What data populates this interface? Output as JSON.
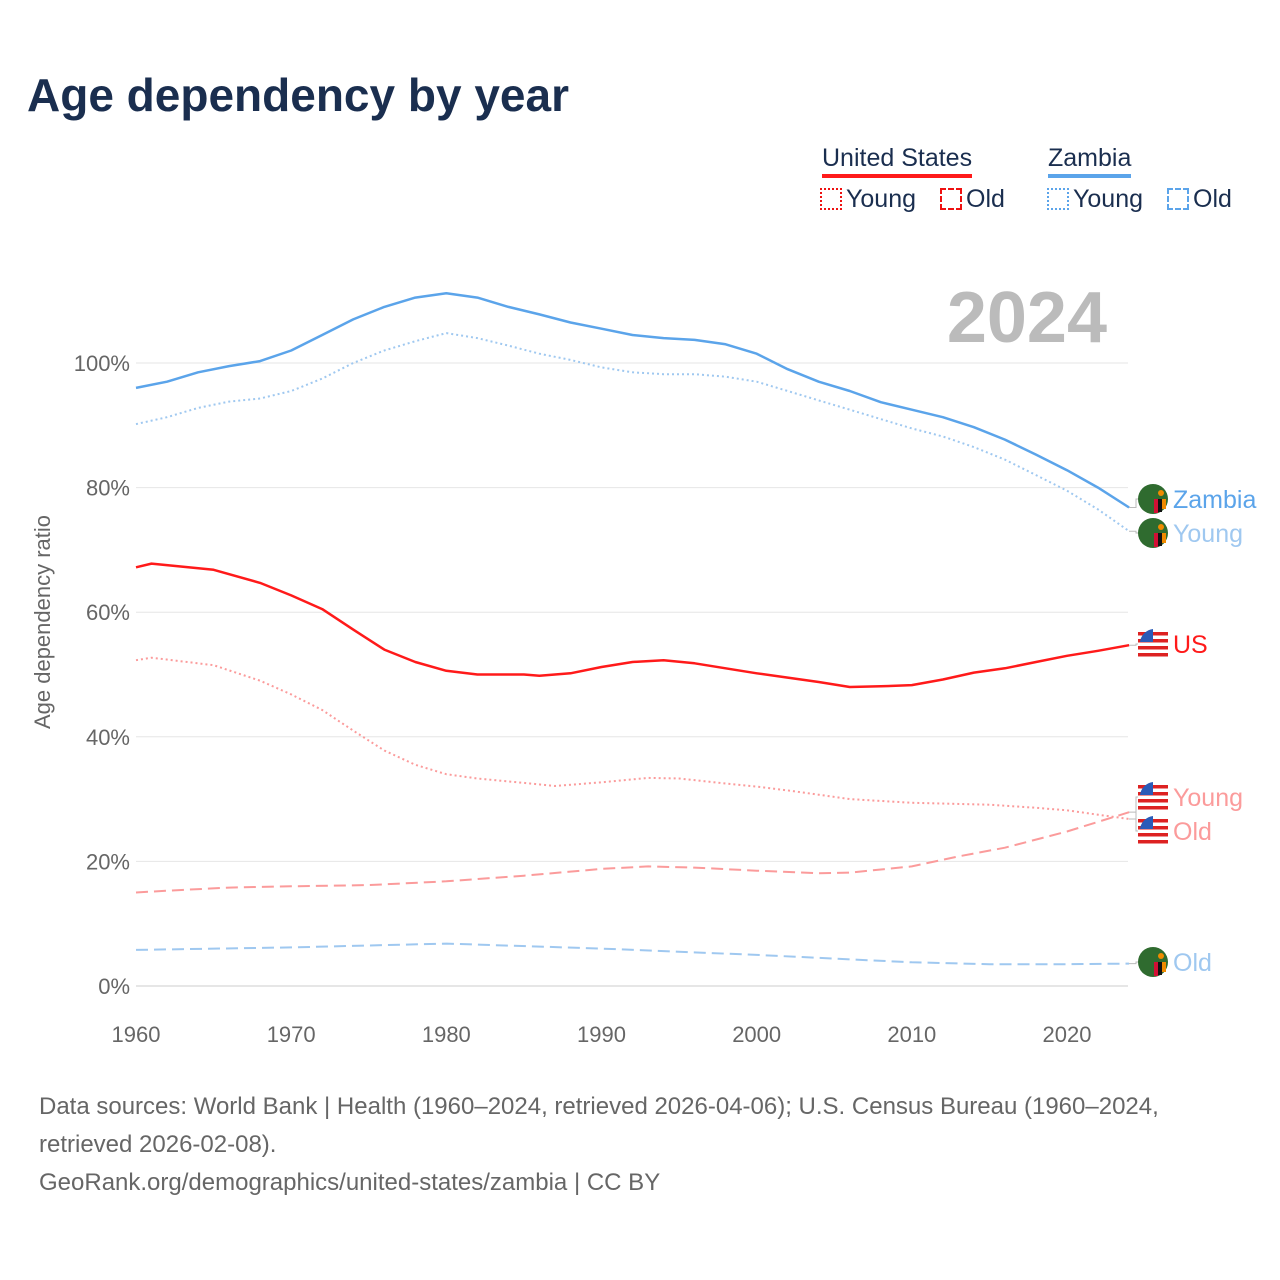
{
  "title": "Age dependency by year",
  "year_badge": "2024",
  "legend": {
    "groups": [
      {
        "name": "United States",
        "color": "#ff1a1a",
        "items": [
          "Young",
          "Old"
        ]
      },
      {
        "name": "Zambia",
        "color": "#5ba4ea",
        "items": [
          "Young",
          "Old"
        ]
      }
    ]
  },
  "footer": {
    "sources": "Data sources: World Bank | Health (1960–2024, retrieved 2026-04-06); U.S. Census Bureau (1960–2024, retrieved 2026-02-08).",
    "link": "GeoRank.org/demographics/united-states/zambia | CC BY"
  },
  "chart_data": {
    "type": "line",
    "title": "Age dependency by year",
    "xlabel": "",
    "ylabel": "Age dependency ratio",
    "xlim": [
      1960,
      2024
    ],
    "ylim": [
      0,
      115
    ],
    "x_ticks": [
      "1960",
      "1970",
      "1980",
      "1990",
      "2000",
      "2010",
      "2020"
    ],
    "y_ticks": [
      "0%",
      "20%",
      "40%",
      "60%",
      "80%",
      "100%"
    ],
    "series": [
      {
        "name": "Zambia",
        "label": "Zambia",
        "style": "solid",
        "color": "#5ba4ea",
        "flag": "zambia",
        "x": [
          1960,
          1962,
          1964,
          1966,
          1968,
          1970,
          1972,
          1974,
          1976,
          1978,
          1980,
          1982,
          1984,
          1986,
          1988,
          1990,
          1992,
          1994,
          1996,
          1998,
          2000,
          2002,
          2004,
          2006,
          2008,
          2010,
          2012,
          2014,
          2016,
          2018,
          2020,
          2022,
          2024
        ],
        "y": [
          96,
          97,
          98.5,
          99.5,
          100.3,
          102,
          104.5,
          107,
          109,
          110.5,
          111.2,
          110.5,
          109,
          107.8,
          106.5,
          105.5,
          104.5,
          104,
          103.7,
          103,
          101.5,
          99,
          97,
          95.5,
          93.7,
          92.5,
          91.3,
          89.7,
          87.7,
          85.3,
          82.8,
          80,
          76.8
        ]
      },
      {
        "name": "Zambia Young",
        "label": "Young",
        "style": "dotted",
        "color": "#9fc8f0",
        "flag": "zambia",
        "x": [
          1960,
          1962,
          1964,
          1966,
          1968,
          1970,
          1972,
          1974,
          1976,
          1978,
          1980,
          1982,
          1984,
          1986,
          1988,
          1990,
          1992,
          1994,
          1996,
          1998,
          2000,
          2002,
          2004,
          2006,
          2008,
          2010,
          2012,
          2014,
          2016,
          2018,
          2020,
          2022,
          2024
        ],
        "y": [
          90.2,
          91.3,
          92.8,
          93.8,
          94.3,
          95.5,
          97.5,
          100,
          102,
          103.5,
          104.8,
          104,
          102.8,
          101.5,
          100.5,
          99.3,
          98.5,
          98.2,
          98.2,
          97.8,
          97,
          95.5,
          94,
          92.5,
          91,
          89.5,
          88.2,
          86.5,
          84.5,
          82,
          79.5,
          76.5,
          73
        ]
      },
      {
        "name": "United States",
        "label": "US",
        "style": "solid",
        "color": "#ff1a1a",
        "flag": "us",
        "x": [
          1960,
          1961,
          1965,
          1968,
          1970,
          1972,
          1974,
          1976,
          1978,
          1980,
          1982,
          1985,
          1986,
          1988,
          1990,
          1992,
          1994,
          1996,
          1998,
          2000,
          2002,
          2004,
          2006,
          2008,
          2010,
          2012,
          2014,
          2016,
          2018,
          2020,
          2022,
          2024
        ],
        "y": [
          67.2,
          67.8,
          66.8,
          64.7,
          62.7,
          60.5,
          57.2,
          54,
          52,
          50.6,
          50,
          50,
          49.8,
          50.2,
          51.2,
          52,
          52.3,
          51.8,
          51,
          50.2,
          49.5,
          48.8,
          48,
          48.1,
          48.3,
          49.2,
          50.3,
          51,
          52,
          53,
          53.8,
          54.7
        ]
      },
      {
        "name": "United States Old",
        "label": "Old",
        "style": "dashed",
        "color": "#fb9b9b",
        "flag": "us",
        "x": [
          1960,
          1962,
          1966,
          1970,
          1975,
          1980,
          1985,
          1990,
          1993,
          1996,
          2000,
          2004,
          2006,
          2010,
          2013,
          2016,
          2020,
          2024
        ],
        "y": [
          15,
          15.3,
          15.8,
          16,
          16.2,
          16.8,
          17.7,
          18.8,
          19.2,
          19,
          18.5,
          18.1,
          18.2,
          19.2,
          20.8,
          22.2,
          24.8,
          27.9
        ]
      },
      {
        "name": "United States Young",
        "label": "Young",
        "style": "dotted",
        "color": "#fb9b9b",
        "flag": "us",
        "x": [
          1960,
          1961,
          1965,
          1968,
          1970,
          1972,
          1974,
          1976,
          1978,
          1980,
          1982,
          1985,
          1987,
          1990,
          1993,
          1995,
          1998,
          2000,
          2002,
          2004,
          2006,
          2010,
          2015,
          2018,
          2020,
          2022,
          2024
        ],
        "y": [
          52.3,
          52.7,
          51.5,
          49,
          46.8,
          44.3,
          41,
          37.8,
          35.5,
          34,
          33.3,
          32.6,
          32.1,
          32.7,
          33.4,
          33.3,
          32.5,
          32,
          31.4,
          30.7,
          30,
          29.4,
          29.1,
          28.6,
          28.2,
          27.5,
          26.8
        ]
      },
      {
        "name": "Zambia Old",
        "label": "Old",
        "style": "dashed",
        "color": "#9fc8f0",
        "flag": "zambia",
        "x": [
          1960,
          1970,
          1980,
          1990,
          2000,
          2010,
          2015,
          2020,
          2024
        ],
        "y": [
          5.8,
          6.2,
          6.8,
          6,
          5,
          3.8,
          3.5,
          3.5,
          3.6
        ]
      }
    ]
  }
}
